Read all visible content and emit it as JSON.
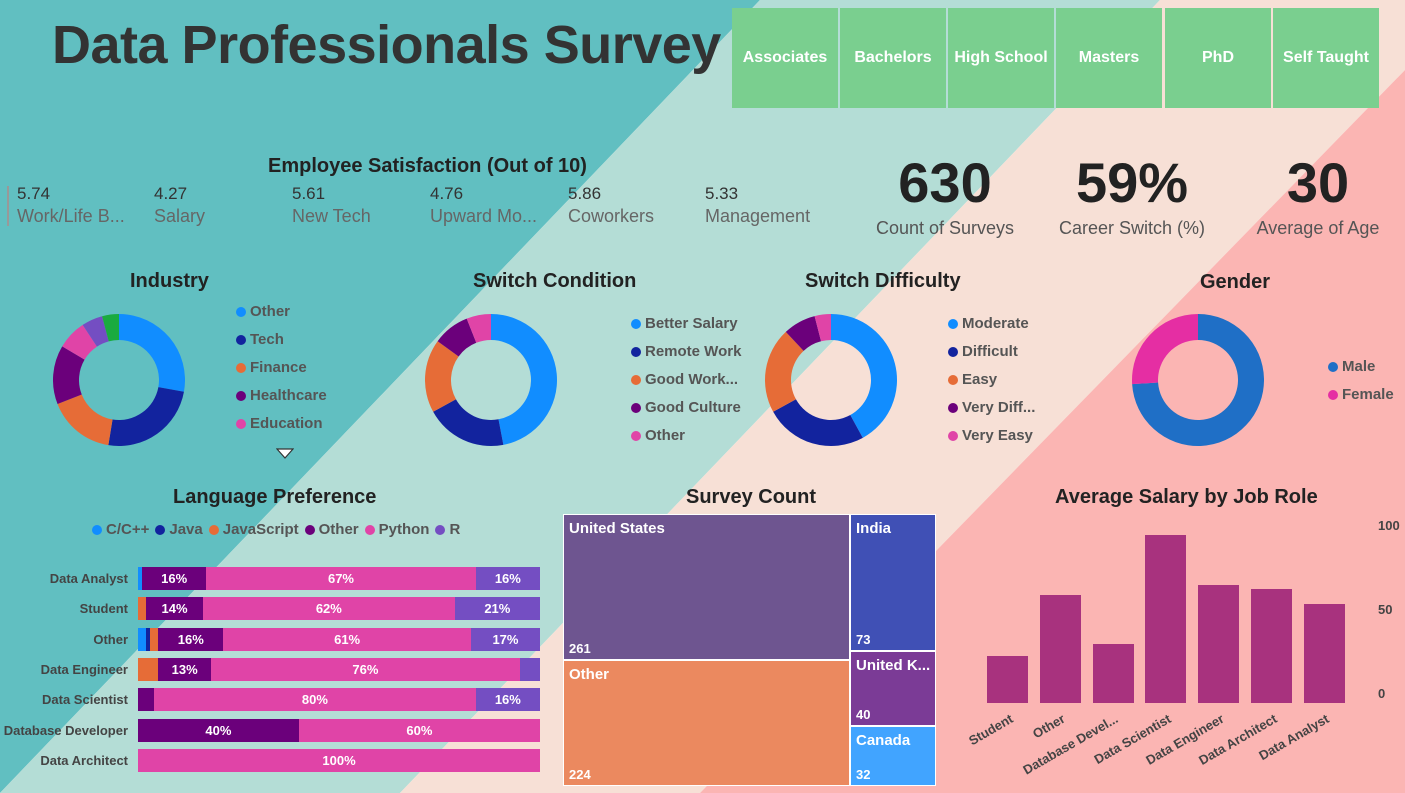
{
  "header": {
    "title": "Data Professionals Survey"
  },
  "slicer": {
    "items": [
      "Associates",
      "Bachelors",
      "High School",
      "Masters",
      "PhD",
      "Self Taught"
    ]
  },
  "satisfaction": {
    "title": "Employee Satisfaction (Out of 10)",
    "items": [
      {
        "value": "5.74",
        "label": "Work/Life B..."
      },
      {
        "value": "4.27",
        "label": "Salary"
      },
      {
        "value": "5.61",
        "label": "New Tech"
      },
      {
        "value": "4.76",
        "label": "Upward Mo..."
      },
      {
        "value": "5.86",
        "label": "Coworkers"
      },
      {
        "value": "5.33",
        "label": "Management"
      }
    ]
  },
  "cards": [
    {
      "value": "630",
      "label": "Count of Surveys"
    },
    {
      "value": "59%",
      "label": "Career Switch (%)"
    },
    {
      "value": "30",
      "label": "Average of Age"
    }
  ],
  "colors": {
    "blue": "#118dff",
    "navy": "#12239e",
    "orange": "#e66c37",
    "purple": "#6b007b",
    "pink": "#e044a7",
    "darkpurple": "#744ec2",
    "green": "#1aab40",
    "male": "#1f6fc6",
    "female": "#e52ea3",
    "bg_teal": "#61bfc1",
    "bg_mint": "#b4ddd6",
    "bg_peach": "#f7e0d6",
    "bg_salmon": "#fbb5b3",
    "slicer": "#7acf8f",
    "bar_salary": "#a8327e"
  },
  "chart_data": [
    {
      "id": "industry",
      "type": "pie",
      "title": "Industry",
      "legend": [
        "Other",
        "Tech",
        "Finance",
        "Healthcare",
        "Education"
      ],
      "slices": [
        {
          "name": "Other",
          "value": 27,
          "color": "#118dff"
        },
        {
          "name": "Tech",
          "value": 24,
          "color": "#12239e"
        },
        {
          "name": "Finance",
          "value": 16,
          "color": "#e66c37"
        },
        {
          "name": "Healthcare",
          "value": 14,
          "color": "#6b007b"
        },
        {
          "name": "Education",
          "value": 7,
          "color": "#e044a7"
        },
        {
          "value": 5,
          "color": "#744ec2"
        },
        {
          "value": 4,
          "color": "#1aab40"
        }
      ]
    },
    {
      "id": "switch_condition",
      "type": "pie",
      "title": "Switch Condition",
      "legend": [
        "Better Salary",
        "Remote Work",
        "Good Work...",
        "Good Culture",
        "Other"
      ],
      "slices": [
        {
          "name": "Better Salary",
          "value": 47,
          "color": "#118dff"
        },
        {
          "name": "Remote Work",
          "value": 20,
          "color": "#12239e"
        },
        {
          "name": "Good Work...",
          "value": 18,
          "color": "#e66c37"
        },
        {
          "name": "Good Culture",
          "value": 9,
          "color": "#6b007b"
        },
        {
          "name": "Other",
          "value": 6,
          "color": "#e044a7"
        }
      ]
    },
    {
      "id": "switch_difficulty",
      "type": "pie",
      "title": "Switch Difficulty",
      "legend": [
        "Moderate",
        "Difficult",
        "Easy",
        "Very Diff...",
        "Very Easy"
      ],
      "slices": [
        {
          "name": "Moderate",
          "value": 42,
          "color": "#118dff"
        },
        {
          "name": "Difficult",
          "value": 25,
          "color": "#12239e"
        },
        {
          "name": "Easy",
          "value": 21,
          "color": "#e66c37"
        },
        {
          "name": "Very Diff...",
          "value": 8,
          "color": "#6b007b"
        },
        {
          "name": "Very Easy",
          "value": 4,
          "color": "#e044a7"
        }
      ]
    },
    {
      "id": "gender",
      "type": "pie",
      "title": "Gender",
      "legend": [
        "Male",
        "Female"
      ],
      "slices": [
        {
          "name": "Male",
          "value": 74,
          "color": "#1f6fc6"
        },
        {
          "name": "Female",
          "value": 26,
          "color": "#e52ea3"
        }
      ]
    },
    {
      "id": "language",
      "type": "bar",
      "orientation": "horizontal",
      "stacked": "100%",
      "title": "Language Preference",
      "series_names": [
        "C/C++",
        "Java",
        "JavaScript",
        "Other",
        "Python",
        "R"
      ],
      "series_colors": [
        "#118dff",
        "#12239e",
        "#e66c37",
        "#6b007b",
        "#e044a7",
        "#744ec2"
      ],
      "rows": [
        {
          "name": "Data Analyst",
          "values": [
            1,
            0,
            0,
            16,
            67,
            16
          ],
          "labels": [
            "",
            "",
            "",
            "16%",
            "67%",
            "16%"
          ]
        },
        {
          "name": "Student",
          "values": [
            0,
            0,
            2,
            14,
            62,
            21
          ],
          "labels": [
            "",
            "",
            "",
            "14%",
            "62%",
            "21%"
          ]
        },
        {
          "name": "Other",
          "values": [
            2,
            1,
            2,
            16,
            61,
            17
          ],
          "labels": [
            "",
            "",
            "",
            "16%",
            "61%",
            "17%"
          ]
        },
        {
          "name": "Data Engineer",
          "values": [
            0,
            0,
            5,
            13,
            76,
            5
          ],
          "labels": [
            "",
            "",
            "",
            "13%",
            "76%",
            ""
          ]
        },
        {
          "name": "Data Scientist",
          "values": [
            0,
            0,
            0,
            4,
            80,
            16
          ],
          "labels": [
            "",
            "",
            "",
            "",
            "80%",
            "16%"
          ]
        },
        {
          "name": "Database Developer",
          "values": [
            0,
            0,
            0,
            40,
            60,
            0
          ],
          "labels": [
            "",
            "",
            "",
            "40%",
            "60%",
            ""
          ]
        },
        {
          "name": "Data Architect",
          "values": [
            0,
            0,
            0,
            0,
            100,
            0
          ],
          "labels": [
            "",
            "",
            "",
            "",
            "100%",
            ""
          ]
        }
      ]
    },
    {
      "id": "survey_count",
      "type": "treemap",
      "title": "Survey Count",
      "items": [
        {
          "name": "United States",
          "value": 261,
          "color": "#6e5590"
        },
        {
          "name": "Other",
          "value": 224,
          "color": "#eb895f"
        },
        {
          "name": "India",
          "value": 73,
          "color": "#4050b5"
        },
        {
          "name": "United K...",
          "value": 40,
          "color": "#7b3b96"
        },
        {
          "name": "Canada",
          "value": 32,
          "color": "#41a4ff"
        }
      ]
    },
    {
      "id": "salary",
      "type": "bar",
      "title": "Average Salary by Job Role",
      "categories": [
        "Student",
        "Other",
        "Database Devel...",
        "Data Scientist",
        "Data Engineer",
        "Data Architect",
        "Data Analyst"
      ],
      "values": [
        28,
        64,
        35,
        100,
        70,
        68,
        59
      ],
      "yticks": [
        "0",
        "50",
        "100"
      ],
      "ylim": [
        0,
        100
      ]
    }
  ]
}
